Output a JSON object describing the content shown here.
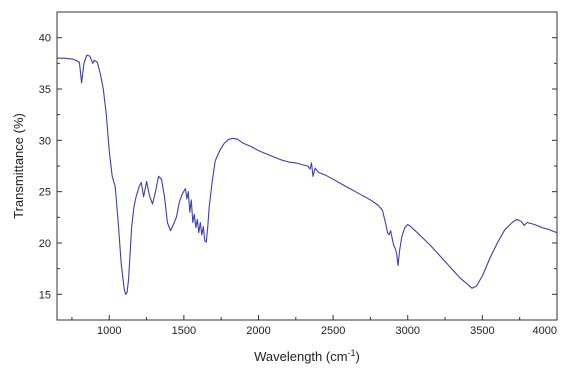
{
  "chart_data": {
    "type": "line",
    "title": "",
    "xlabel": "Wavelength (cm",
    "xlabel_sup": "-1",
    "xlabel_suffix": ")",
    "ylabel": "Transmittance (%)",
    "xlim": [
      650,
      4000
    ],
    "ylim": [
      12.5,
      42.5
    ],
    "xticks": [
      1000,
      1500,
      2000,
      2500,
      3000,
      3500,
      4000
    ],
    "yticks": [
      15,
      20,
      25,
      30,
      35,
      40
    ],
    "grid": false,
    "series": [
      {
        "color": "#3b3fb0",
        "x": [
          650,
          700,
          760,
          800,
          815,
          830,
          850,
          870,
          890,
          900,
          920,
          940,
          960,
          980,
          1000,
          1020,
          1040,
          1060,
          1080,
          1100,
          1110,
          1120,
          1130,
          1140,
          1150,
          1165,
          1180,
          1200,
          1215,
          1230,
          1250,
          1270,
          1290,
          1310,
          1330,
          1350,
          1370,
          1390,
          1410,
          1430,
          1450,
          1470,
          1490,
          1510,
          1520,
          1530,
          1540,
          1550,
          1560,
          1570,
          1580,
          1590,
          1600,
          1610,
          1620,
          1630,
          1640,
          1650,
          1660,
          1670,
          1690,
          1710,
          1740,
          1770,
          1800,
          1830,
          1860,
          1880,
          1900,
          1950,
          2000,
          2050,
          2100,
          2150,
          2200,
          2250,
          2300,
          2330,
          2345,
          2355,
          2365,
          2380,
          2400,
          2450,
          2500,
          2550,
          2600,
          2650,
          2700,
          2750,
          2800,
          2830,
          2850,
          2865,
          2875,
          2885,
          2895,
          2905,
          2915,
          2925,
          2935,
          2945,
          2960,
          2980,
          3000,
          3020,
          3050,
          3100,
          3150,
          3200,
          3250,
          3300,
          3350,
          3400,
          3430,
          3460,
          3500,
          3550,
          3600,
          3650,
          3700,
          3730,
          3760,
          3780,
          3800,
          3850,
          3900,
          3950,
          4000
        ],
        "y": [
          38.0,
          38.0,
          37.9,
          37.6,
          35.6,
          37.5,
          38.3,
          38.2,
          37.5,
          37.8,
          37.6,
          36.5,
          35.0,
          32.5,
          29.0,
          26.5,
          25.5,
          22.0,
          18.0,
          15.5,
          15.0,
          15.2,
          16.5,
          19.0,
          21.5,
          23.5,
          24.5,
          25.5,
          25.9,
          24.5,
          26.0,
          24.6,
          23.8,
          25.0,
          26.5,
          26.2,
          24.5,
          22.0,
          21.2,
          21.8,
          22.5,
          24.0,
          24.8,
          25.3,
          24.3,
          25.0,
          23.0,
          24.2,
          22.0,
          22.8,
          21.5,
          22.3,
          21.0,
          22.0,
          20.8,
          21.6,
          20.2,
          20.1,
          21.5,
          23.5,
          26.0,
          28.0,
          29.0,
          29.7,
          30.1,
          30.2,
          30.1,
          29.9,
          29.7,
          29.4,
          29.0,
          28.7,
          28.4,
          28.1,
          27.9,
          27.8,
          27.6,
          27.5,
          27.2,
          27.8,
          26.5,
          27.3,
          26.9,
          26.6,
          26.2,
          25.8,
          25.4,
          25.0,
          24.6,
          24.2,
          23.7,
          23.2,
          22.0,
          21.0,
          20.8,
          21.2,
          20.5,
          19.8,
          19.5,
          19.0,
          17.8,
          19.2,
          20.6,
          21.5,
          21.8,
          21.6,
          21.2,
          20.5,
          19.8,
          19.0,
          18.2,
          17.4,
          16.6,
          16.0,
          15.6,
          15.8,
          16.8,
          18.5,
          20.0,
          21.3,
          22.0,
          22.3,
          22.1,
          21.7,
          22.0,
          21.8,
          21.5,
          21.3,
          21.0
        ]
      }
    ]
  }
}
